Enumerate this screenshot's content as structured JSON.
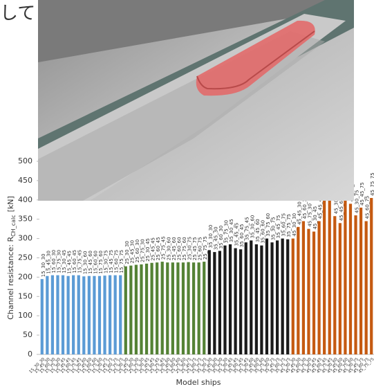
{
  "caption_fragment": "して",
  "chart_data": {
    "type": "bar",
    "y_label_parts": [
      "Channel resistance: R",
      "CH_calc",
      "[kN]"
    ],
    "x_label": "Model ships",
    "ylim": [
      0,
      500
    ],
    "yticks": [
      0,
      50,
      100,
      150,
      200,
      250,
      300,
      350,
      400,
      450,
      500
    ],
    "series": [
      {
        "color": "#5b9bd5",
        "categories": [
          "15_30_30",
          "15_45_30",
          "15_60_30",
          "15_75_30",
          "15_30_45",
          "15_45_45",
          "15_60_45",
          "15_75_45",
          "15_30_60",
          "15_45_60",
          "15_60_60",
          "15_75_60",
          "15_30_75",
          "15_45_75",
          "15_60_75",
          "15_75_75"
        ],
        "values": [
          195,
          203,
          205,
          205,
          205,
          203,
          205,
          205,
          202,
          203,
          203,
          203,
          204,
          205,
          205,
          205
        ]
      },
      {
        "color": "#548235",
        "categories": [
          "25_30_30",
          "25_45_30",
          "25_60_30",
          "25_75_30",
          "25_30_45",
          "25_45_45",
          "25_60_45",
          "25_75_45",
          "25_30_60",
          "25_45_60",
          "25_60_60",
          "25_75_60",
          "25_30_75",
          "25_45_75",
          "25_60_75",
          "25_75_75"
        ],
        "values": [
          228,
          230,
          232,
          233,
          235,
          237,
          238,
          240,
          238,
          238,
          238,
          238,
          239,
          238,
          238,
          240
        ]
      },
      {
        "color": "#1a1a1a",
        "categories": [
          "35_30_30",
          "35_45_30",
          "35_60_30",
          "35_75_30",
          "35_30_45",
          "35_45_45",
          "35_60_45",
          "35_75_45",
          "35_30_60",
          "35_45_60",
          "35_60_60",
          "35_75_60",
          "35_30_75",
          "35_45_75",
          "35_60_75",
          "35_75_75"
        ],
        "values": [
          270,
          265,
          268,
          282,
          285,
          275,
          272,
          290,
          295,
          285,
          282,
          300,
          290,
          295,
          300,
          298
        ]
      },
      {
        "color": "#c55a11",
        "categories": [
          "45_30_30",
          "45_45_30",
          "45_60_30",
          "45_75_30",
          "45_30_45",
          "45_45_45",
          "45_60_45",
          "45_75_45",
          "45_30_60",
          "45_45_60",
          "45_60_60",
          "45_75_60",
          "45_30_75",
          "45_45_75",
          "45_60_75",
          "45_75_75"
        ],
        "values": [
          300,
          330,
          345,
          325,
          318,
          345,
          405,
          410,
          358,
          340,
          400,
          390,
          360,
          380,
          345,
          405
        ]
      }
    ]
  }
}
